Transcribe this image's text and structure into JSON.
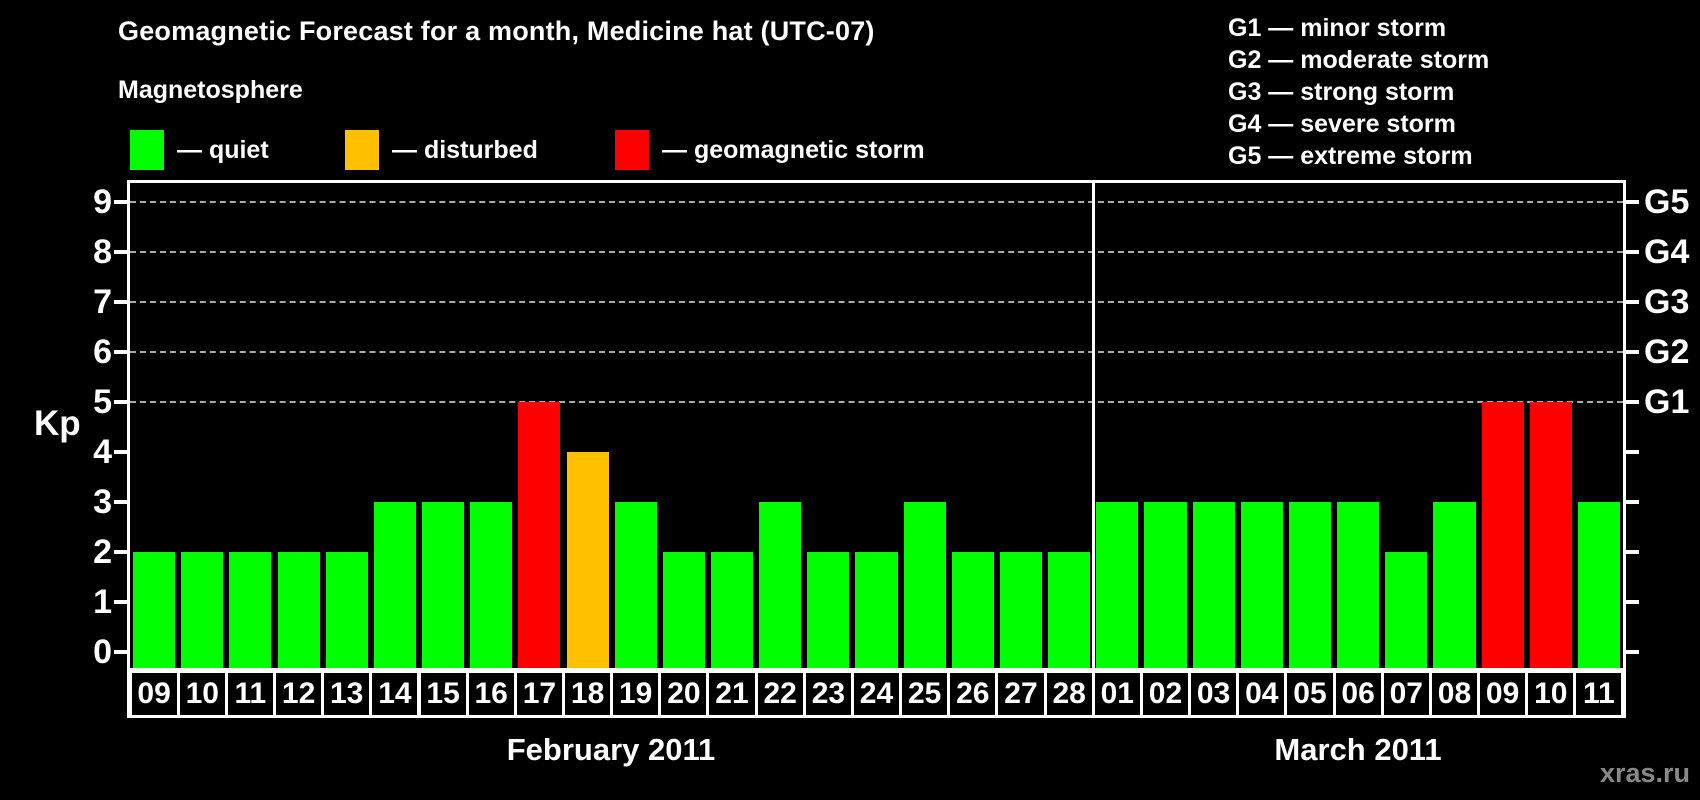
{
  "title": "Geomagnetic Forecast for a month, Medicine hat (UTC-07)",
  "watermark": "xras.ru",
  "magnetosphere": {
    "heading": "Magnetosphere",
    "items": [
      {
        "key": "quiet",
        "label": "— quiet",
        "color": "#00ff00"
      },
      {
        "key": "disturbed",
        "label": "— disturbed",
        "color": "#ffc000"
      },
      {
        "key": "storm",
        "label": "— geomagnetic storm",
        "color": "#ff0000"
      }
    ]
  },
  "g_scale_legend": [
    "G1 — minor storm",
    "G2 — moderate storm",
    "G3 — strong storm",
    "G4 — severe storm",
    "G5 — extreme storm"
  ],
  "chart_data": {
    "type": "bar",
    "title": "Geomagnetic Forecast for a month, Medicine hat (UTC-07)",
    "ylabel": "Kp",
    "ylim": [
      0,
      9
    ],
    "y_ticks": [
      "0",
      "1",
      "2",
      "3",
      "4",
      "5",
      "6",
      "7",
      "8",
      "9"
    ],
    "right_axis": [
      {
        "kp": 5,
        "label": "G1"
      },
      {
        "kp": 6,
        "label": "G2"
      },
      {
        "kp": 7,
        "label": "G3"
      },
      {
        "kp": 8,
        "label": "G4"
      },
      {
        "kp": 9,
        "label": "G5"
      }
    ],
    "gridlines_at": [
      5,
      6,
      7,
      8,
      9
    ],
    "grid": "dashed horizontal lines at Kp 5-9 only",
    "legend_position": "top",
    "colors": {
      "quiet": "#00ff00",
      "disturbed": "#ffc000",
      "storm": "#ff0000",
      "axis": "#ffffff",
      "grid": "#aaaaaa"
    },
    "months": [
      {
        "label": "February 2011",
        "days": [
          "09",
          "10",
          "11",
          "12",
          "13",
          "14",
          "15",
          "16",
          "17",
          "18",
          "19",
          "20",
          "21",
          "22",
          "23",
          "24",
          "25",
          "26",
          "27",
          "28"
        ],
        "values": [
          2,
          2,
          2,
          2,
          2,
          3,
          3,
          3,
          5,
          4,
          3,
          2,
          2,
          3,
          2,
          2,
          3,
          2,
          2,
          2
        ],
        "status": [
          "quiet",
          "quiet",
          "quiet",
          "quiet",
          "quiet",
          "quiet",
          "quiet",
          "quiet",
          "storm",
          "disturbed",
          "quiet",
          "quiet",
          "quiet",
          "quiet",
          "quiet",
          "quiet",
          "quiet",
          "quiet",
          "quiet",
          "quiet"
        ]
      },
      {
        "label": "March 2011",
        "days": [
          "01",
          "02",
          "03",
          "04",
          "05",
          "06",
          "07",
          "08",
          "09",
          "10",
          "11"
        ],
        "values": [
          3,
          3,
          3,
          3,
          3,
          3,
          2,
          3,
          5,
          5,
          3
        ],
        "status": [
          "quiet",
          "quiet",
          "quiet",
          "quiet",
          "quiet",
          "quiet",
          "quiet",
          "quiet",
          "storm",
          "storm",
          "quiet"
        ]
      }
    ]
  }
}
